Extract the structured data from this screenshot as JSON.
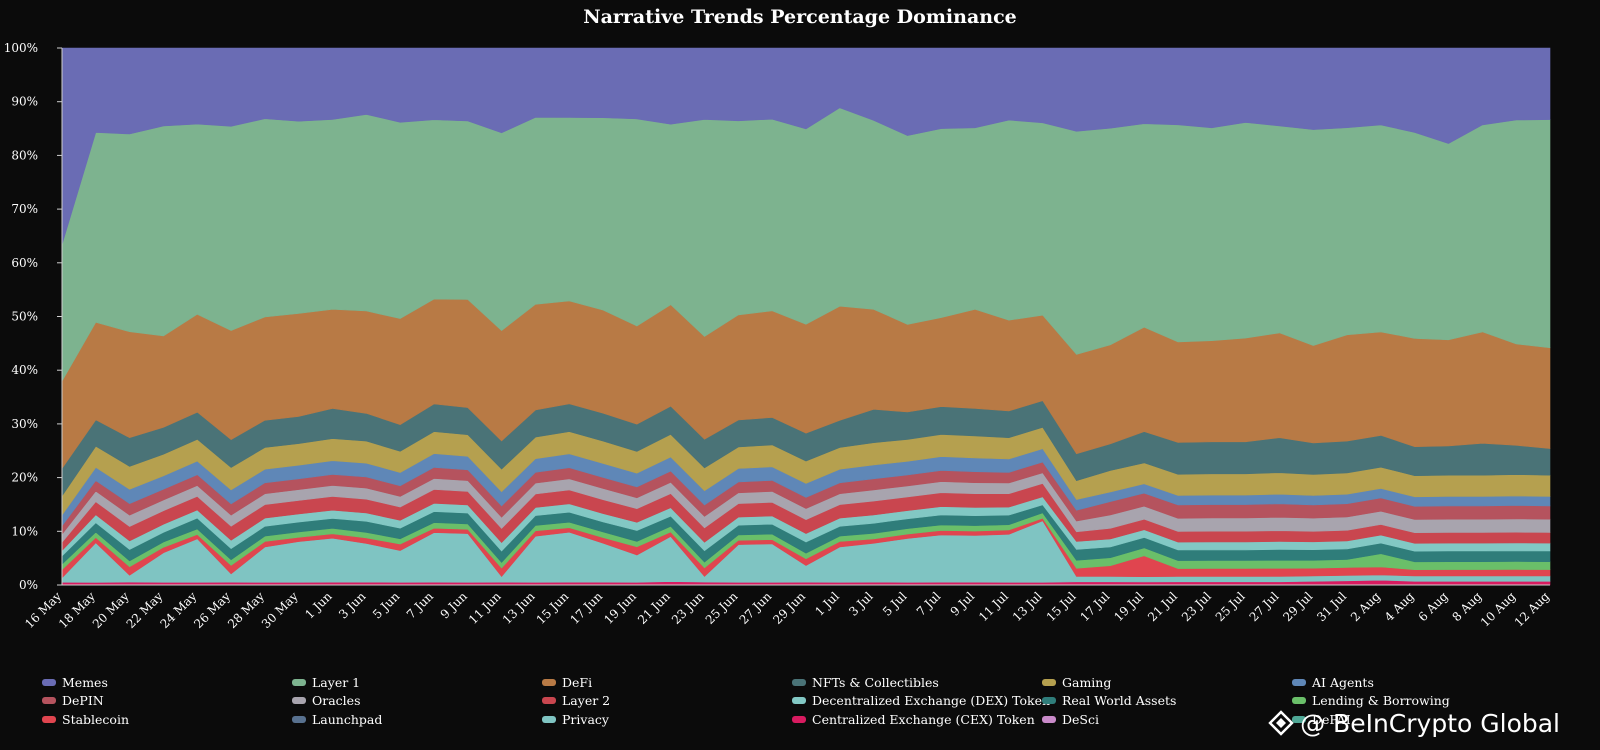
{
  "chart_data": {
    "type": "area",
    "stacked": true,
    "normalized": true,
    "title": "Narrative Trends Percentage Dominance",
    "ylim": [
      0,
      100
    ],
    "y_ticks": [
      "0%",
      "10%",
      "20%",
      "30%",
      "40%",
      "50%",
      "60%",
      "70%",
      "80%",
      "90%",
      "100%"
    ],
    "x": [
      "16 May",
      "18 May",
      "20 May",
      "22 May",
      "24 May",
      "26 May",
      "28 May",
      "30 May",
      "1 Jun",
      "3 Jun",
      "5 Jun",
      "7 Jun",
      "9 Jun",
      "11 Jun",
      "13 Jun",
      "15 Jun",
      "17 Jun",
      "19 Jun",
      "21 Jun",
      "23 Jun",
      "25 Jun",
      "27 Jun",
      "29 Jun",
      "1 Jul",
      "3 Jul",
      "5 Jul",
      "7 Jul",
      "9 Jul",
      "11 Jul",
      "13 Jul",
      "15 Jul",
      "17 Jul",
      "19 Jul",
      "21 Jul",
      "23 Jul",
      "25 Jul",
      "27 Jul",
      "29 Jul",
      "31 Jul",
      "2 Aug",
      "4 Aug",
      "6 Aug",
      "8 Aug",
      "10 Aug",
      "12 Aug"
    ],
    "stack_order_bottom_to_top": [
      "Centralized Exchange (CEX) Token",
      "Privacy",
      "Stablecoin",
      "Lending & Borrowing",
      "Real World Assets",
      "Decentralized Exchange (DEX) Token",
      "Layer 2",
      "Oracles",
      "DePIN",
      "AI Agents",
      "Gaming",
      "NFTs & Collectibles",
      "DeFi",
      "Layer 1",
      "Memes"
    ],
    "series": [
      {
        "name": "Centralized Exchange (CEX) Token",
        "color": "#d81b60",
        "values": [
          0.5,
          0.5,
          0.5,
          0.5,
          0.5,
          0.5,
          0.5,
          0.5,
          0.5,
          0.5,
          0.5,
          0.5,
          0.5,
          0.5,
          0.5,
          0.5,
          0.5,
          0.5,
          0.6,
          0.5,
          0.5,
          0.5,
          0.5,
          0.5,
          0.5,
          0.5,
          0.5,
          0.5,
          0.5,
          0.5,
          0.6,
          0.6,
          0.6,
          0.6,
          0.6,
          0.6,
          0.6,
          0.7,
          0.8,
          0.9,
          0.7,
          0.7,
          0.7,
          0.7,
          0.7
        ]
      },
      {
        "name": "Privacy",
        "color": "#7fc4c2",
        "values": [
          0.8,
          7.5,
          1.2,
          5.5,
          8.0,
          1.5,
          6.5,
          7.5,
          8.0,
          7.0,
          6.0,
          9.0,
          9.0,
          1.0,
          8.5,
          9.0,
          7.0,
          5.0,
          8.0,
          1.0,
          7.0,
          7.0,
          3.0,
          6.5,
          7.0,
          8.0,
          8.5,
          8.5,
          9.0,
          11.5,
          1.0,
          1.0,
          1.0,
          1.0,
          1.0,
          1.0,
          1.0,
          1.0,
          1.0,
          1.0,
          1.0,
          1.0,
          1.0,
          1.0,
          1.0
        ]
      },
      {
        "name": "Stablecoin",
        "color": "#e0454f",
        "values": [
          1.5,
          1.0,
          1.5,
          1.0,
          0.8,
          1.5,
          1.0,
          0.8,
          0.8,
          1.0,
          1.2,
          0.8,
          0.8,
          1.5,
          1.0,
          0.8,
          1.0,
          1.5,
          0.8,
          1.5,
          0.8,
          0.8,
          1.2,
          1.0,
          0.8,
          0.8,
          0.8,
          0.8,
          0.8,
          0.5,
          1.5,
          2.0,
          4.0,
          1.5,
          1.5,
          1.5,
          1.5,
          1.5,
          1.5,
          1.5,
          1.2,
          1.2,
          1.2,
          1.2,
          1.2
        ]
      },
      {
        "name": "Lending & Borrowing",
        "color": "#6abf69",
        "values": [
          1.0,
          1.0,
          1.0,
          1.0,
          1.0,
          1.0,
          1.0,
          1.0,
          1.0,
          1.0,
          1.0,
          1.0,
          1.0,
          1.0,
          1.0,
          1.0,
          1.0,
          1.0,
          1.0,
          1.0,
          1.0,
          1.0,
          1.0,
          1.0,
          1.0,
          1.0,
          1.0,
          1.0,
          1.0,
          1.0,
          1.5,
          1.5,
          1.5,
          1.5,
          1.5,
          1.5,
          1.5,
          1.5,
          1.5,
          2.5,
          1.5,
          1.5,
          1.5,
          1.5,
          1.5
        ]
      },
      {
        "name": "Real World Assets",
        "color": "#2f7d7a",
        "values": [
          1.5,
          1.8,
          2.0,
          1.8,
          2.0,
          2.0,
          1.8,
          1.8,
          1.8,
          2.0,
          2.0,
          2.0,
          2.0,
          2.0,
          1.8,
          1.8,
          1.8,
          2.0,
          1.8,
          2.0,
          1.8,
          1.8,
          2.0,
          1.8,
          1.8,
          1.8,
          1.8,
          1.8,
          1.8,
          1.5,
          2.0,
          2.0,
          2.0,
          2.0,
          2.0,
          2.0,
          2.0,
          2.0,
          2.0,
          2.0,
          2.0,
          2.0,
          2.0,
          2.0,
          2.0
        ]
      },
      {
        "name": "Decentralized Exchange (DEX) Token",
        "color": "#82c8c4",
        "values": [
          1.0,
          1.5,
          1.5,
          1.5,
          1.5,
          1.5,
          1.5,
          1.5,
          1.5,
          1.5,
          1.5,
          1.5,
          1.5,
          1.5,
          1.5,
          1.5,
          1.5,
          1.5,
          1.5,
          1.5,
          1.5,
          1.5,
          1.5,
          1.5,
          1.5,
          1.5,
          1.5,
          1.5,
          1.5,
          1.5,
          1.5,
          1.5,
          1.5,
          1.5,
          1.5,
          1.5,
          1.5,
          1.5,
          1.5,
          1.5,
          1.5,
          1.5,
          1.5,
          1.5,
          1.5
        ]
      },
      {
        "name": "Layer 2",
        "color": "#c9464f",
        "values": [
          1.5,
          2.5,
          2.5,
          2.5,
          2.5,
          2.5,
          2.5,
          2.5,
          2.5,
          2.5,
          2.5,
          2.5,
          2.5,
          2.5,
          2.5,
          2.5,
          2.5,
          2.5,
          2.5,
          2.5,
          2.5,
          2.5,
          2.5,
          2.5,
          2.5,
          2.5,
          2.5,
          2.5,
          2.5,
          2.5,
          1.8,
          2.0,
          2.0,
          2.0,
          2.0,
          2.0,
          2.0,
          2.0,
          2.0,
          2.0,
          2.0,
          2.0,
          2.0,
          2.0,
          2.0
        ]
      },
      {
        "name": "Oracles",
        "color": "#a8a4ae",
        "values": [
          1.5,
          2.0,
          2.0,
          2.0,
          2.0,
          2.0,
          2.0,
          2.0,
          2.0,
          2.0,
          2.0,
          2.0,
          2.0,
          2.0,
          2.0,
          2.0,
          2.0,
          2.0,
          2.0,
          2.0,
          2.0,
          2.0,
          2.0,
          2.0,
          2.0,
          2.0,
          2.0,
          2.0,
          2.0,
          2.0,
          2.0,
          2.5,
          2.5,
          2.5,
          2.5,
          2.5,
          2.5,
          2.5,
          2.5,
          2.5,
          2.5,
          2.5,
          2.5,
          2.5,
          2.5
        ]
      },
      {
        "name": "DePIN",
        "color": "#b5535e",
        "values": [
          1.5,
          2.0,
          2.0,
          2.0,
          2.0,
          2.0,
          2.0,
          2.0,
          2.0,
          2.0,
          2.0,
          2.0,
          2.0,
          2.0,
          2.0,
          2.0,
          2.0,
          2.0,
          2.0,
          2.0,
          2.0,
          2.0,
          2.0,
          2.0,
          2.0,
          2.0,
          2.0,
          2.0,
          2.0,
          2.0,
          2.0,
          2.5,
          2.5,
          2.5,
          2.5,
          2.5,
          2.5,
          2.5,
          2.5,
          2.5,
          2.5,
          2.5,
          2.5,
          2.5,
          2.5
        ]
      },
      {
        "name": "AI Agents",
        "color": "#5f87b7",
        "values": [
          2.0,
          2.5,
          2.5,
          2.5,
          2.5,
          2.5,
          2.5,
          2.5,
          2.5,
          2.5,
          2.5,
          2.5,
          2.5,
          2.5,
          2.5,
          2.5,
          2.5,
          2.5,
          2.5,
          2.5,
          2.5,
          2.5,
          2.5,
          2.5,
          2.5,
          2.5,
          2.5,
          2.5,
          2.5,
          2.5,
          2.0,
          1.8,
          1.8,
          1.8,
          1.8,
          1.8,
          1.8,
          1.8,
          1.8,
          1.8,
          1.8,
          1.8,
          1.8,
          1.8,
          1.8
        ]
      },
      {
        "name": "Gaming",
        "color": "#b5a04f",
        "values": [
          3.5,
          4.0,
          4.0,
          4.0,
          4.0,
          4.0,
          4.0,
          4.0,
          4.0,
          4.0,
          4.0,
          4.0,
          4.0,
          4.0,
          4.0,
          4.0,
          4.0,
          4.0,
          4.0,
          4.0,
          4.0,
          4.0,
          4.0,
          4.0,
          4.0,
          4.0,
          4.0,
          4.0,
          4.0,
          4.0,
          3.5,
          4.0,
          4.0,
          4.0,
          4.0,
          4.0,
          4.0,
          4.0,
          4.0,
          4.0,
          4.0,
          4.0,
          4.0,
          4.0,
          4.0
        ]
      },
      {
        "name": "NFTs & Collectibles",
        "color": "#4a7377",
        "values": [
          5.0,
          5.0,
          5.0,
          5.0,
          5.0,
          5.0,
          5.0,
          5.0,
          5.5,
          5.0,
          5.0,
          5.0,
          5.0,
          5.0,
          5.0,
          5.0,
          5.0,
          5.0,
          5.0,
          5.0,
          5.0,
          5.0,
          5.0,
          5.0,
          6.0,
          5.0,
          5.0,
          5.0,
          5.0,
          5.0,
          5.0,
          5.0,
          6.0,
          6.0,
          6.0,
          6.0,
          6.5,
          6.0,
          6.0,
          6.0,
          5.5,
          5.5,
          6.0,
          5.5,
          5.0
        ]
      },
      {
        "name": "DeFi",
        "color": "#b87a45",
        "values": [
          16.0,
          18.5,
          18.5,
          17.0,
          18.0,
          19.5,
          19.0,
          19.0,
          18.0,
          18.5,
          20.0,
          19.0,
          20.0,
          19.5,
          19.5,
          18.5,
          18.5,
          18.0,
          18.0,
          18.0,
          19.5,
          19.5,
          19.5,
          21.0,
          18.0,
          16.0,
          16.0,
          18.0,
          17.0,
          16.0,
          18.5,
          18.5,
          20.0,
          19.0,
          19.0,
          19.5,
          19.5,
          18.5,
          20.0,
          19.5,
          20.5,
          20.0,
          21.0,
          19.0,
          19.0
        ]
      },
      {
        "name": "Layer 1",
        "color": "#7db38f",
        "values": [
          25.0,
          36.0,
          34.5,
          39.0,
          35.0,
          36.5,
          36.5,
          35.5,
          34.5,
          35.5,
          37.0,
          32.5,
          33.0,
          35.0,
          34.5,
          33.0,
          34.5,
          38.0,
          32.0,
          38.0,
          36.0,
          35.0,
          35.0,
          36.5,
          34.0,
          34.5,
          34.0,
          33.0,
          37.5,
          36.0,
          41.5,
          40.5,
          39.0,
          41.0,
          40.0,
          40.5,
          38.5,
          41.0,
          39.0,
          39.0,
          39.0,
          37.0,
          39.0,
          42.0,
          43.0
        ]
      },
      {
        "name": "Memes",
        "color": "#6a6cb4",
        "values": [
          36.0,
          16.0,
          15.0,
          14.5,
          14.0,
          14.0,
          13.0,
          13.5,
          13.0,
          12.0,
          14.0,
          13.0,
          13.5,
          15.0,
          12.8,
          12.5,
          12.5,
          13.0,
          13.5,
          12.5,
          13.5,
          13.0,
          14.5,
          11.0,
          13.0,
          16.0,
          14.5,
          14.5,
          13.5,
          14.0,
          15.5,
          15.0,
          14.5,
          14.5,
          15.0,
          14.0,
          14.5,
          15.5,
          15.0,
          14.5,
          16.0,
          18.0,
          14.5,
          13.5,
          13.5
        ]
      }
    ],
    "legend": {
      "placement": "bottom",
      "items": [
        "Memes",
        "Layer 1",
        "DeFi",
        "NFTs & Collectibles",
        "Gaming",
        "AI Agents",
        "DePIN",
        "Oracles",
        "Layer 2",
        "Decentralized Exchange (DEX) Token",
        "Real World Assets",
        "Lending & Borrowing",
        "Stablecoin",
        "Launchpad",
        "Privacy",
        "Centralized Exchange (CEX) Token",
        "DeSci",
        "DePAI"
      ],
      "colors": [
        "#6a6cb4",
        "#7db38f",
        "#b87a45",
        "#4a7377",
        "#b5a04f",
        "#5f87b7",
        "#b5535e",
        "#a8a4ae",
        "#c9464f",
        "#82c8c4",
        "#2f7d7a",
        "#6abf69",
        "#e0454f",
        "#58718f",
        "#7fc4c2",
        "#d81b60",
        "#c98ac9",
        "#4fa896"
      ]
    },
    "grid": false
  },
  "watermark": {
    "text": "@ BeInCrypto Global",
    "logo_icon": "beincrypto-diamond-icon"
  }
}
